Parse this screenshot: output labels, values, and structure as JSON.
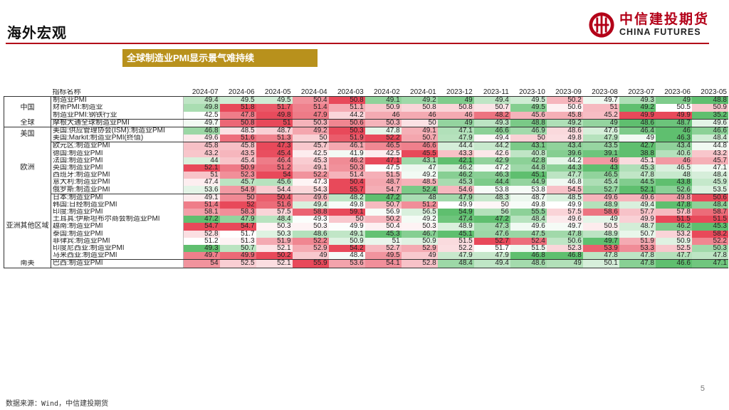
{
  "header": {
    "title": "海外宏观"
  },
  "logo": {
    "cn": "中信建投期货",
    "en": "CHINA FUTURES",
    "color": "#b30018"
  },
  "subtitle": "全球制造业PMI显示景气难持续",
  "table": {
    "name_header": "指标名称",
    "dates": [
      "2024-07",
      "2024-06",
      "2024-05",
      "2024-04",
      "2024-03",
      "2024-02",
      "2024-01",
      "2023-12",
      "2023-11",
      "2023-10",
      "2023-09",
      "2023-08",
      "2023-07",
      "2023-06",
      "2023-05"
    ],
    "groups": [
      {
        "region": "中国",
        "rows": [
          {
            "name": "制造业PMI",
            "values": [
              "49.4",
              "49.5",
              "49.5",
              "50.4",
              "50.8",
              "49.1",
              "49.2",
              "49",
              "49.4",
              "49.5",
              "50.2",
              "49.7",
              "49.3",
              "49",
              "48.8"
            ]
          },
          {
            "name": "财新PMI:制造业",
            "values": [
              "49.8",
              "51.8",
              "51.7",
              "51.4",
              "51.1",
              "50.9",
              "50.8",
              "50.8",
              "50.7",
              "49.5",
              "50.6",
              "51",
              "49.2",
              "50.5",
              "50.9"
            ]
          },
          {
            "name": "制造业PMI:钢铁行业",
            "values": [
              "42.5",
              "47.8",
              "49.8",
              "47.9",
              "44.2",
              "46",
              "46",
              "46",
              "48.2",
              "45.6",
              "45.8",
              "45.2",
              "49.9",
              "49.9",
              "35.2"
            ]
          }
        ]
      },
      {
        "region": "全球",
        "rows": [
          {
            "name": "摩根大通全球制造业PMI",
            "values": [
              "49.7",
              "50.8",
              "51",
              "50.3",
              "50.6",
              "50.3",
              "50",
              "49",
              "49.3",
              "48.8",
              "49.2",
              "49",
              "48.6",
              "48.7",
              "49.6"
            ]
          }
        ]
      },
      {
        "region": "美国",
        "rows": [
          {
            "name": "美国:供应管理协会(ISM):制造业PMI",
            "values": [
              "46.8",
              "48.5",
              "48.7",
              "49.2",
              "50.3",
              "47.8",
              "49.1",
              "47.1",
              "46.6",
              "46.9",
              "48.6",
              "47.6",
              "46.4",
              "46",
              "46.6"
            ]
          },
          {
            "name": "美国:Markit:制造业PMI(终值)",
            "values": [
              "49.6",
              "51.6",
              "51.3",
              "50",
              "51.9",
              "52.2",
              "50.7",
              "47.9",
              "49.4",
              "50",
              "49.8",
              "47.9",
              "49",
              "46.3",
              "48.4"
            ]
          }
        ]
      },
      {
        "region": "欧洲",
        "rows": [
          {
            "name": "欧元区:制造业PMI",
            "values": [
              "45.8",
              "45.8",
              "47.3",
              "45.7",
              "46.1",
              "46.5",
              "46.6",
              "44.4",
              "44.2",
              "43.1",
              "43.4",
              "43.5",
              "42.7",
              "43.4",
              "44.8"
            ]
          },
          {
            "name": "德国:制造业PMI",
            "values": [
              "43.2",
              "43.5",
              "45.4",
              "42.5",
              "41.9",
              "42.5",
              "45.5",
              "43.3",
              "42.6",
              "40.8",
              "39.6",
              "39.1",
              "38.8",
              "40.6",
              "43.2"
            ]
          },
          {
            "name": "法国:制造业PMI",
            "values": [
              "44",
              "45.4",
              "46.4",
              "45.3",
              "46.2",
              "47.1",
              "43.1",
              "42.1",
              "42.9",
              "42.8",
              "44.2",
              "46",
              "45.1",
              "46",
              "45.7"
            ]
          },
          {
            "name": "英国:制造业PMI",
            "values": [
              "52.1",
              "50.9",
              "51.2",
              "49.1",
              "50.3",
              "47.5",
              "47",
              "46.2",
              "47.2",
              "44.8",
              "44.3",
              "43",
              "45.3",
              "46.5",
              "47.1"
            ]
          },
          {
            "name": "西班牙:制造业PMI",
            "values": [
              "51",
              "52.3",
              "54",
              "52.2",
              "51.4",
              "51.5",
              "49.2",
              "46.2",
              "46.3",
              "45.1",
              "47.7",
              "46.5",
              "47.8",
              "48",
              "48.4"
            ]
          },
          {
            "name": "意大利:制造业PMI",
            "values": [
              "47.4",
              "45.7",
              "45.6",
              "47.3",
              "50.4",
              "48.7",
              "48.5",
              "45.3",
              "44.4",
              "44.9",
              "46.8",
              "45.4",
              "44.5",
              "43.8",
              "45.9"
            ]
          },
          {
            "name": "俄罗斯:制造业PMI",
            "values": [
              "53.6",
              "54.9",
              "54.4",
              "54.3",
              "55.7",
              "54.7",
              "52.4",
              "54.6",
              "53.8",
              "53.8",
              "54.5",
              "52.7",
              "52.1",
              "52.6",
              "53.5"
            ]
          }
        ]
      },
      {
        "region": "亚洲其他区域",
        "rows": [
          {
            "name": "日本:制造业PMI",
            "values": [
              "49.1",
              "50",
              "50.4",
              "49.6",
              "48.2",
              "47.2",
              "48",
              "47.9",
              "48.3",
              "48.7",
              "48.5",
              "49.6",
              "49.6",
              "49.8",
              "50.6"
            ]
          },
          {
            "name": "韩国:日经制造业PMI",
            "values": [
              "51.4",
              "52",
              "51.6",
              "49.4",
              "49.8",
              "50.7",
              "51.2",
              "49.9",
              "50",
              "49.8",
              "49.9",
              "48.9",
              "49.4",
              "47.8",
              "48.4"
            ]
          },
          {
            "name": "印度:制造业PMI",
            "values": [
              "58.1",
              "58.3",
              "57.5",
              "58.8",
              "59.1",
              "56.9",
              "56.5",
              "54.9",
              "56",
              "55.5",
              "57.5",
              "58.6",
              "57.7",
              "57.8",
              "58.7"
            ]
          },
          {
            "name": "土耳其:伊斯坦布尔商会制造业PMI",
            "values": [
              "47.2",
              "47.9",
              "48.4",
              "49.3",
              "50",
              "50.2",
              "49.2",
              "47.4",
              "47.2",
              "48.4",
              "49.6",
              "49",
              "49.9",
              "51.5",
              "51.5"
            ]
          },
          {
            "name": "越南:制造业PMI",
            "values": [
              "54.7",
              "54.7",
              "50.3",
              "50.3",
              "49.9",
              "50.4",
              "50.3",
              "48.9",
              "47.3",
              "49.6",
              "49.7",
              "50.5",
              "48.7",
              "46.2",
              "45.3"
            ]
          },
          {
            "name": "泰国:制造业PMI",
            "values": [
              "52.8",
              "51.7",
              "50.3",
              "48.6",
              "49.1",
              "45.3",
              "46.7",
              "45.1",
              "47.6",
              "47.5",
              "47.8",
              "48.9",
              "50.7",
              "53.2",
              "58.2"
            ]
          },
          {
            "name": "菲律宾:制造业PMI",
            "values": [
              "51.2",
              "51.3",
              "51.9",
              "52.2",
              "50.9",
              "51",
              "50.9",
              "51.5",
              "52.7",
              "52.4",
              "50.6",
              "49.7",
              "51.9",
              "50.9",
              "52.2"
            ]
          },
          {
            "name": "印度尼西亚:制造业PMI",
            "values": [
              "49.3",
              "50.7",
              "52.1",
              "52.9",
              "54.2",
              "52.7",
              "52.9",
              "52.2",
              "51.7",
              "51.5",
              "52.3",
              "53.9",
              "53.3",
              "52.5",
              "50.3"
            ]
          },
          {
            "name": "马来西亚:制造业PMI",
            "values": [
              "49.7",
              "49.9",
              "50.2",
              "49",
              "48.4",
              "49.5",
              "49",
              "47.9",
              "47.9",
              "46.8",
              "46.8",
              "47.8",
              "47.8",
              "47.7",
              "47.8"
            ]
          }
        ]
      },
      {
        "region": "南美",
        "rows": [
          {
            "name": "巴西:制造业PMI",
            "values": [
              "54",
              "52.5",
              "52.1",
              "55.9",
              "53.6",
              "54.1",
              "52.8",
              "48.4",
              "49.4",
              "48.6",
              "49",
              "50.1",
              "47.8",
              "46.6",
              "47.1"
            ]
          }
        ]
      }
    ]
  },
  "source": "数据来源：Wind，中信建投期货",
  "page_number": "5",
  "heatmap_colors": {
    "low": "#5fbf6f",
    "mid": "#ffffff",
    "high": "#e8495a"
  }
}
